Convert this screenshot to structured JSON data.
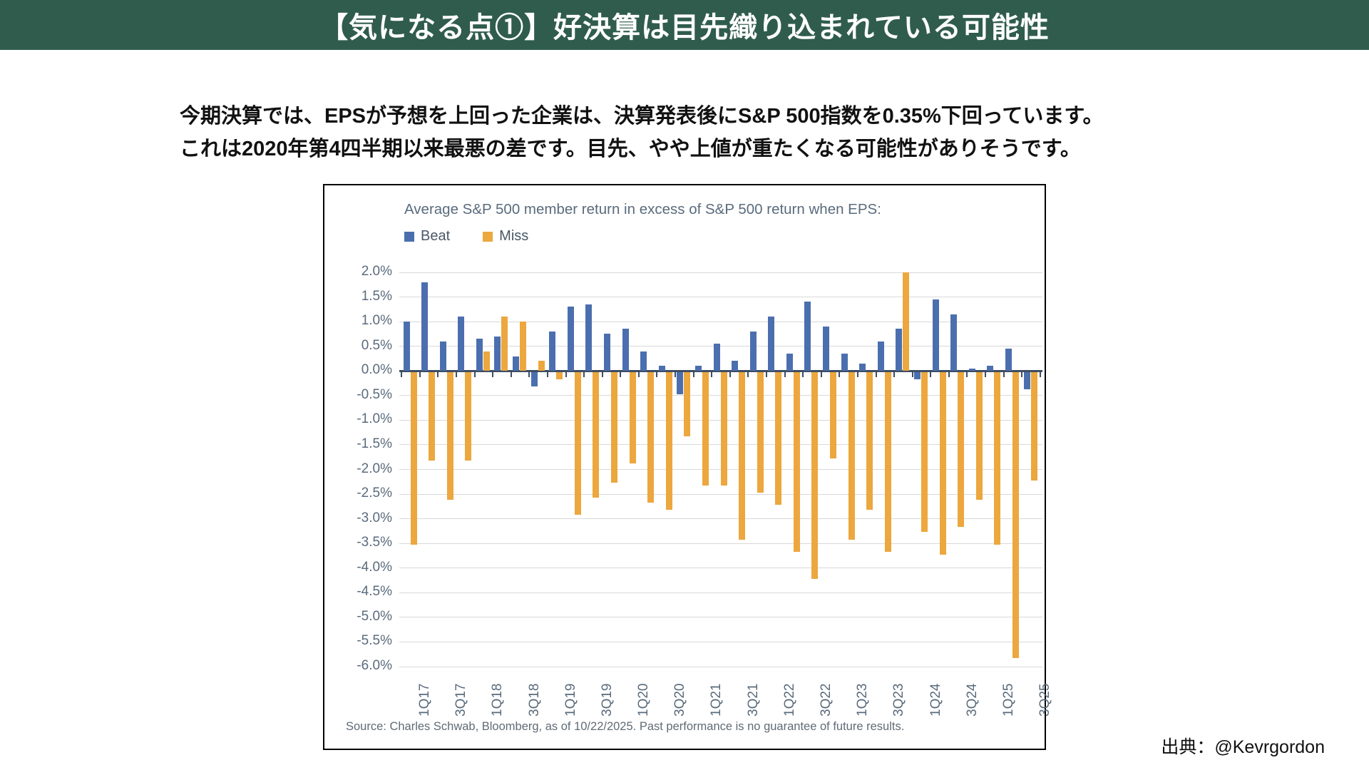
{
  "header": {
    "title": "【気になる点①】好決算は目先織り込まれている可能性",
    "bg_color": "#305c4d"
  },
  "intro": {
    "line1": "今期決算では、EPSが予想を上回った企業は、決算発表後にS&P 500指数を0.35%下回っています。",
    "line2": "これは2020年第4四半期以来最悪の差です。目先、やや上値が重たくなる可能性がありそうです。"
  },
  "chart_data": {
    "type": "bar",
    "title": "Average S&P 500 member return in excess of S&P 500 return when EPS:",
    "categories": [
      "1Q17",
      "2Q17",
      "3Q17",
      "4Q17",
      "1Q18",
      "2Q18",
      "3Q18",
      "4Q18",
      "1Q19",
      "2Q19",
      "3Q19",
      "4Q19",
      "1Q20",
      "2Q20",
      "3Q20",
      "4Q20",
      "1Q21",
      "2Q21",
      "3Q21",
      "4Q21",
      "1Q22",
      "2Q22",
      "3Q22",
      "4Q22",
      "1Q23",
      "2Q23",
      "3Q23",
      "4Q23",
      "1Q24",
      "2Q24",
      "3Q24",
      "4Q24",
      "1Q25",
      "2Q25",
      "3Q25"
    ],
    "series": [
      {
        "name": "Beat",
        "color": "#4b6fae",
        "values": [
          1.0,
          1.8,
          0.6,
          1.1,
          0.65,
          0.7,
          0.3,
          -0.3,
          0.8,
          1.3,
          1.35,
          0.75,
          0.85,
          0.4,
          0.1,
          -0.45,
          0.1,
          0.55,
          0.2,
          0.8,
          1.1,
          0.35,
          1.4,
          0.9,
          0.35,
          0.15,
          0.6,
          0.85,
          -0.15,
          1.45,
          1.15,
          0.05,
          0.1,
          0.45,
          -0.35
        ]
      },
      {
        "name": "Miss",
        "color": "#eca73e",
        "values": [
          -3.5,
          -1.8,
          -2.6,
          -1.8,
          0.4,
          1.1,
          1.0,
          0.2,
          -0.15,
          -2.9,
          -2.55,
          -2.25,
          -1.85,
          -2.65,
          -2.8,
          -1.3,
          -2.3,
          -2.3,
          -3.4,
          -2.45,
          -2.7,
          -3.65,
          -4.2,
          -1.75,
          -3.4,
          -2.8,
          -3.65,
          2.0,
          -3.25,
          -3.7,
          -3.15,
          -2.6,
          -3.5,
          -5.8,
          -2.2
        ]
      }
    ],
    "ylim": [
      -6.0,
      2.0
    ],
    "y_tick_step": 0.5,
    "y_tick_labels": [
      "2.0%",
      "1.5%",
      "1.0%",
      "0.5%",
      "0.0%",
      "-0.5%",
      "-1.0%",
      "-1.5%",
      "-2.0%",
      "-2.5%",
      "-3.0%",
      "-3.5%",
      "-4.0%",
      "-4.5%",
      "-5.0%",
      "-5.5%",
      "-6.0%"
    ],
    "x_tick_labels": [
      "1Q17",
      "3Q17",
      "1Q18",
      "3Q18",
      "1Q19",
      "3Q19",
      "1Q20",
      "3Q20",
      "1Q21",
      "3Q21",
      "1Q22",
      "3Q22",
      "1Q23",
      "3Q23",
      "1Q24",
      "3Q24",
      "1Q25",
      "3Q25"
    ],
    "x_labeled_every": 2,
    "grid": true,
    "legend_position": "top-left",
    "source": "Source: Charles Schwab, Bloomberg, as of 10/22/2025. Past performance is no guarantee of future results."
  },
  "attribution": {
    "text": "出典：@Kevrgordon"
  }
}
